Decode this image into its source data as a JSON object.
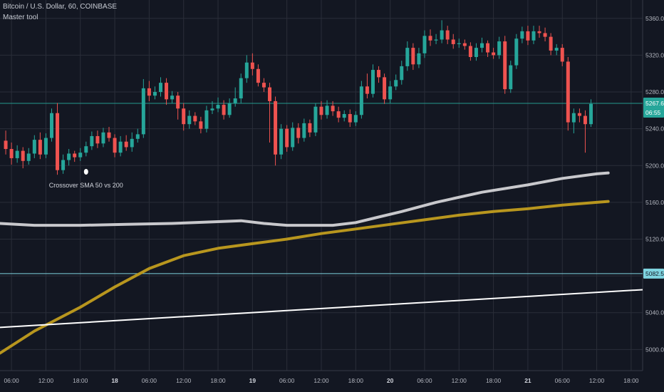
{
  "header": {
    "symbol_line": "Bitcoin / U.S. Dollar, 60, COINBASE",
    "indicator": "Master tool"
  },
  "price_axis": {
    "last_price": "5267.63",
    "countdown": "06:55",
    "level_tag": "5082.54"
  },
  "annotation": {
    "text": "Crossover SMA 50 vs 200"
  },
  "colors": {
    "background": "#131722",
    "grid": "#2a2e39",
    "up": "#26a69a",
    "down": "#ef5350",
    "sma_50": "#c8c8cc",
    "sma_200": "#b8961e",
    "trendline": "#ffffff",
    "horizontal_level": "#7fd4e0"
  },
  "chart_data": {
    "type": "candlestick",
    "ylim": [
      4977,
      5380
    ],
    "yticks": [
      5000,
      5040,
      5080,
      5120,
      5160,
      5200,
      5240,
      5280,
      5320,
      5360
    ],
    "ytick_labels": [
      "5000.00",
      "5040.00",
      "5080.00",
      "5120.00",
      "5160.00",
      "5200.00",
      "5240.00",
      "5280.00",
      "5320.00",
      "5360.00"
    ],
    "x_start_hour": -14,
    "x_end_hour": 98,
    "xticks": [
      {
        "hour": -12,
        "label": "06:00",
        "bold": false
      },
      {
        "hour": -6,
        "label": "12:00",
        "bold": false
      },
      {
        "hour": 0,
        "label": "18:00",
        "bold": false
      },
      {
        "hour": 6,
        "label": "18",
        "bold": true
      },
      {
        "hour": 12,
        "label": "06:00",
        "bold": false
      },
      {
        "hour": 18,
        "label": "12:00",
        "bold": false
      },
      {
        "hour": 24,
        "label": "18:00",
        "bold": false
      },
      {
        "hour": 30,
        "label": "19",
        "bold": true
      },
      {
        "hour": 36,
        "label": "06:00",
        "bold": false
      },
      {
        "hour": 42,
        "label": "12:00",
        "bold": false
      },
      {
        "hour": 48,
        "label": "18:00",
        "bold": false
      },
      {
        "hour": 54,
        "label": "20",
        "bold": true
      },
      {
        "hour": 60,
        "label": "06:00",
        "bold": false
      },
      {
        "hour": 66,
        "label": "12:00",
        "bold": false
      },
      {
        "hour": 72,
        "label": "18:00",
        "bold": false
      },
      {
        "hour": 78,
        "label": "21",
        "bold": true
      },
      {
        "hour": 84,
        "label": "06:00",
        "bold": false
      },
      {
        "hour": 90,
        "label": "12:00",
        "bold": false
      },
      {
        "hour": 96,
        "label": "18:00",
        "bold": false
      }
    ],
    "candles": [
      [
        5227,
        5218,
        5238,
        5212
      ],
      [
        5218,
        5208,
        5225,
        5201
      ],
      [
        5208,
        5216,
        5222,
        5203
      ],
      [
        5216,
        5205,
        5220,
        5197
      ],
      [
        5205,
        5213,
        5219,
        5201
      ],
      [
        5213,
        5228,
        5233,
        5208
      ],
      [
        5228,
        5212,
        5236,
        5207
      ],
      [
        5212,
        5230,
        5235,
        5208
      ],
      [
        5230,
        5257,
        5262,
        5226
      ],
      [
        5257,
        5195,
        5268,
        5190
      ],
      [
        5195,
        5206,
        5212,
        5191
      ],
      [
        5206,
        5213,
        5218,
        5200
      ],
      [
        5213,
        5209,
        5216,
        5204
      ],
      [
        5209,
        5214,
        5219,
        5205
      ],
      [
        5214,
        5221,
        5226,
        5210
      ],
      [
        5221,
        5232,
        5237,
        5217
      ],
      [
        5232,
        5224,
        5238,
        5219
      ],
      [
        5224,
        5236,
        5241,
        5220
      ],
      [
        5236,
        5230,
        5242,
        5226
      ],
      [
        5230,
        5214,
        5234,
        5209
      ],
      [
        5214,
        5226,
        5232,
        5210
      ],
      [
        5226,
        5220,
        5233,
        5216
      ],
      [
        5220,
        5229,
        5236,
        5215
      ],
      [
        5229,
        5234,
        5240,
        5225
      ],
      [
        5234,
        5284,
        5294,
        5230
      ],
      [
        5284,
        5276,
        5292,
        5270
      ],
      [
        5276,
        5280,
        5286,
        5272
      ],
      [
        5280,
        5290,
        5296,
        5275
      ],
      [
        5290,
        5272,
        5295,
        5266
      ],
      [
        5272,
        5276,
        5281,
        5268
      ],
      [
        5276,
        5262,
        5280,
        5250
      ],
      [
        5262,
        5245,
        5268,
        5238
      ],
      [
        5245,
        5254,
        5260,
        5240
      ],
      [
        5254,
        5248,
        5258,
        5244
      ],
      [
        5248,
        5240,
        5253,
        5235
      ],
      [
        5240,
        5260,
        5265,
        5236
      ],
      [
        5260,
        5262,
        5270,
        5256
      ],
      [
        5262,
        5266,
        5274,
        5258
      ],
      [
        5266,
        5255,
        5271,
        5250
      ],
      [
        5255,
        5268,
        5273,
        5252
      ],
      [
        5268,
        5273,
        5285,
        5264
      ],
      [
        5273,
        5295,
        5300,
        5268
      ],
      [
        5295,
        5312,
        5320,
        5290
      ],
      [
        5312,
        5305,
        5322,
        5298
      ],
      [
        5305,
        5290,
        5310,
        5286
      ],
      [
        5290,
        5285,
        5295,
        5280
      ],
      [
        5285,
        5270,
        5290,
        5225
      ],
      [
        5270,
        5212,
        5275,
        5200
      ],
      [
        5212,
        5240,
        5245,
        5207
      ],
      [
        5240,
        5220,
        5244,
        5215
      ],
      [
        5220,
        5241,
        5247,
        5216
      ],
      [
        5241,
        5230,
        5246,
        5224
      ],
      [
        5230,
        5246,
        5251,
        5226
      ],
      [
        5246,
        5236,
        5250,
        5231
      ],
      [
        5236,
        5264,
        5268,
        5232
      ],
      [
        5264,
        5255,
        5270,
        5250
      ],
      [
        5255,
        5265,
        5271,
        5251
      ],
      [
        5265,
        5259,
        5270,
        5254
      ],
      [
        5259,
        5252,
        5264,
        5247
      ],
      [
        5252,
        5256,
        5260,
        5248
      ],
      [
        5256,
        5247,
        5261,
        5242
      ],
      [
        5247,
        5255,
        5259,
        5243
      ],
      [
        5255,
        5286,
        5292,
        5251
      ],
      [
        5286,
        5278,
        5300,
        5273
      ],
      [
        5278,
        5304,
        5310,
        5274
      ],
      [
        5304,
        5296,
        5308,
        5290
      ],
      [
        5296,
        5272,
        5300,
        5267
      ],
      [
        5272,
        5286,
        5292,
        5268
      ],
      [
        5286,
        5293,
        5299,
        5282
      ],
      [
        5293,
        5308,
        5314,
        5288
      ],
      [
        5308,
        5328,
        5335,
        5303
      ],
      [
        5328,
        5310,
        5333,
        5304
      ],
      [
        5310,
        5322,
        5328,
        5306
      ],
      [
        5322,
        5341,
        5347,
        5317
      ],
      [
        5341,
        5336,
        5348,
        5330
      ],
      [
        5336,
        5337,
        5343,
        5332
      ],
      [
        5337,
        5347,
        5358,
        5333
      ],
      [
        5347,
        5337,
        5352,
        5332
      ],
      [
        5337,
        5332,
        5343,
        5327
      ],
      [
        5332,
        5333,
        5338,
        5328
      ],
      [
        5333,
        5330,
        5337,
        5326
      ],
      [
        5330,
        5318,
        5334,
        5314
      ],
      [
        5318,
        5328,
        5333,
        5314
      ],
      [
        5328,
        5333,
        5339,
        5323
      ],
      [
        5333,
        5323,
        5336,
        5318
      ],
      [
        5323,
        5320,
        5328,
        5316
      ],
      [
        5320,
        5335,
        5340,
        5316
      ],
      [
        5335,
        5283,
        5341,
        5278
      ],
      [
        5283,
        5309,
        5314,
        5279
      ],
      [
        5309,
        5338,
        5343,
        5305
      ],
      [
        5338,
        5346,
        5351,
        5333
      ],
      [
        5346,
        5336,
        5352,
        5331
      ],
      [
        5336,
        5346,
        5352,
        5332
      ],
      [
        5346,
        5344,
        5352,
        5339
      ],
      [
        5344,
        5340,
        5350,
        5335
      ],
      [
        5340,
        5325,
        5344,
        5320
      ],
      [
        5325,
        5328,
        5332,
        5320
      ],
      [
        5328,
        5313,
        5332,
        5308
      ],
      [
        5313,
        5247,
        5318,
        5238
      ],
      [
        5247,
        5257,
        5262,
        5235
      ],
      [
        5257,
        5254,
        5262,
        5247
      ],
      [
        5254,
        5245,
        5260,
        5214
      ],
      [
        5245,
        5267,
        5272,
        5242
      ]
    ],
    "sma_50": [
      [
        -14,
        5137
      ],
      [
        -8,
        5135
      ],
      [
        0,
        5135
      ],
      [
        8,
        5136
      ],
      [
        16,
        5137
      ],
      [
        24,
        5139
      ],
      [
        28,
        5140
      ],
      [
        32,
        5137
      ],
      [
        36,
        5135
      ],
      [
        44,
        5135
      ],
      [
        48,
        5138
      ],
      [
        52,
        5144
      ],
      [
        56,
        5150
      ],
      [
        62,
        5160
      ],
      [
        70,
        5171
      ],
      [
        78,
        5179
      ],
      [
        84,
        5186
      ],
      [
        90,
        5191
      ],
      [
        92,
        5192
      ]
    ],
    "sma_200": [
      [
        -14,
        4996
      ],
      [
        -8,
        5020
      ],
      [
        0,
        5046
      ],
      [
        6,
        5068
      ],
      [
        12,
        5088
      ],
      [
        18,
        5102
      ],
      [
        24,
        5110
      ],
      [
        30,
        5115
      ],
      [
        36,
        5120
      ],
      [
        42,
        5126
      ],
      [
        48,
        5131
      ],
      [
        54,
        5136
      ],
      [
        60,
        5141
      ],
      [
        66,
        5146
      ],
      [
        72,
        5150
      ],
      [
        78,
        5153
      ],
      [
        84,
        5157
      ],
      [
        90,
        5160
      ],
      [
        92,
        5161
      ]
    ],
    "trendline": {
      "from": [
        -14,
        5024
      ],
      "to": [
        98,
        5065
      ]
    },
    "horizontal_level": 5082.54,
    "last_price_level": 5267.63,
    "crossover_hour": 1
  }
}
